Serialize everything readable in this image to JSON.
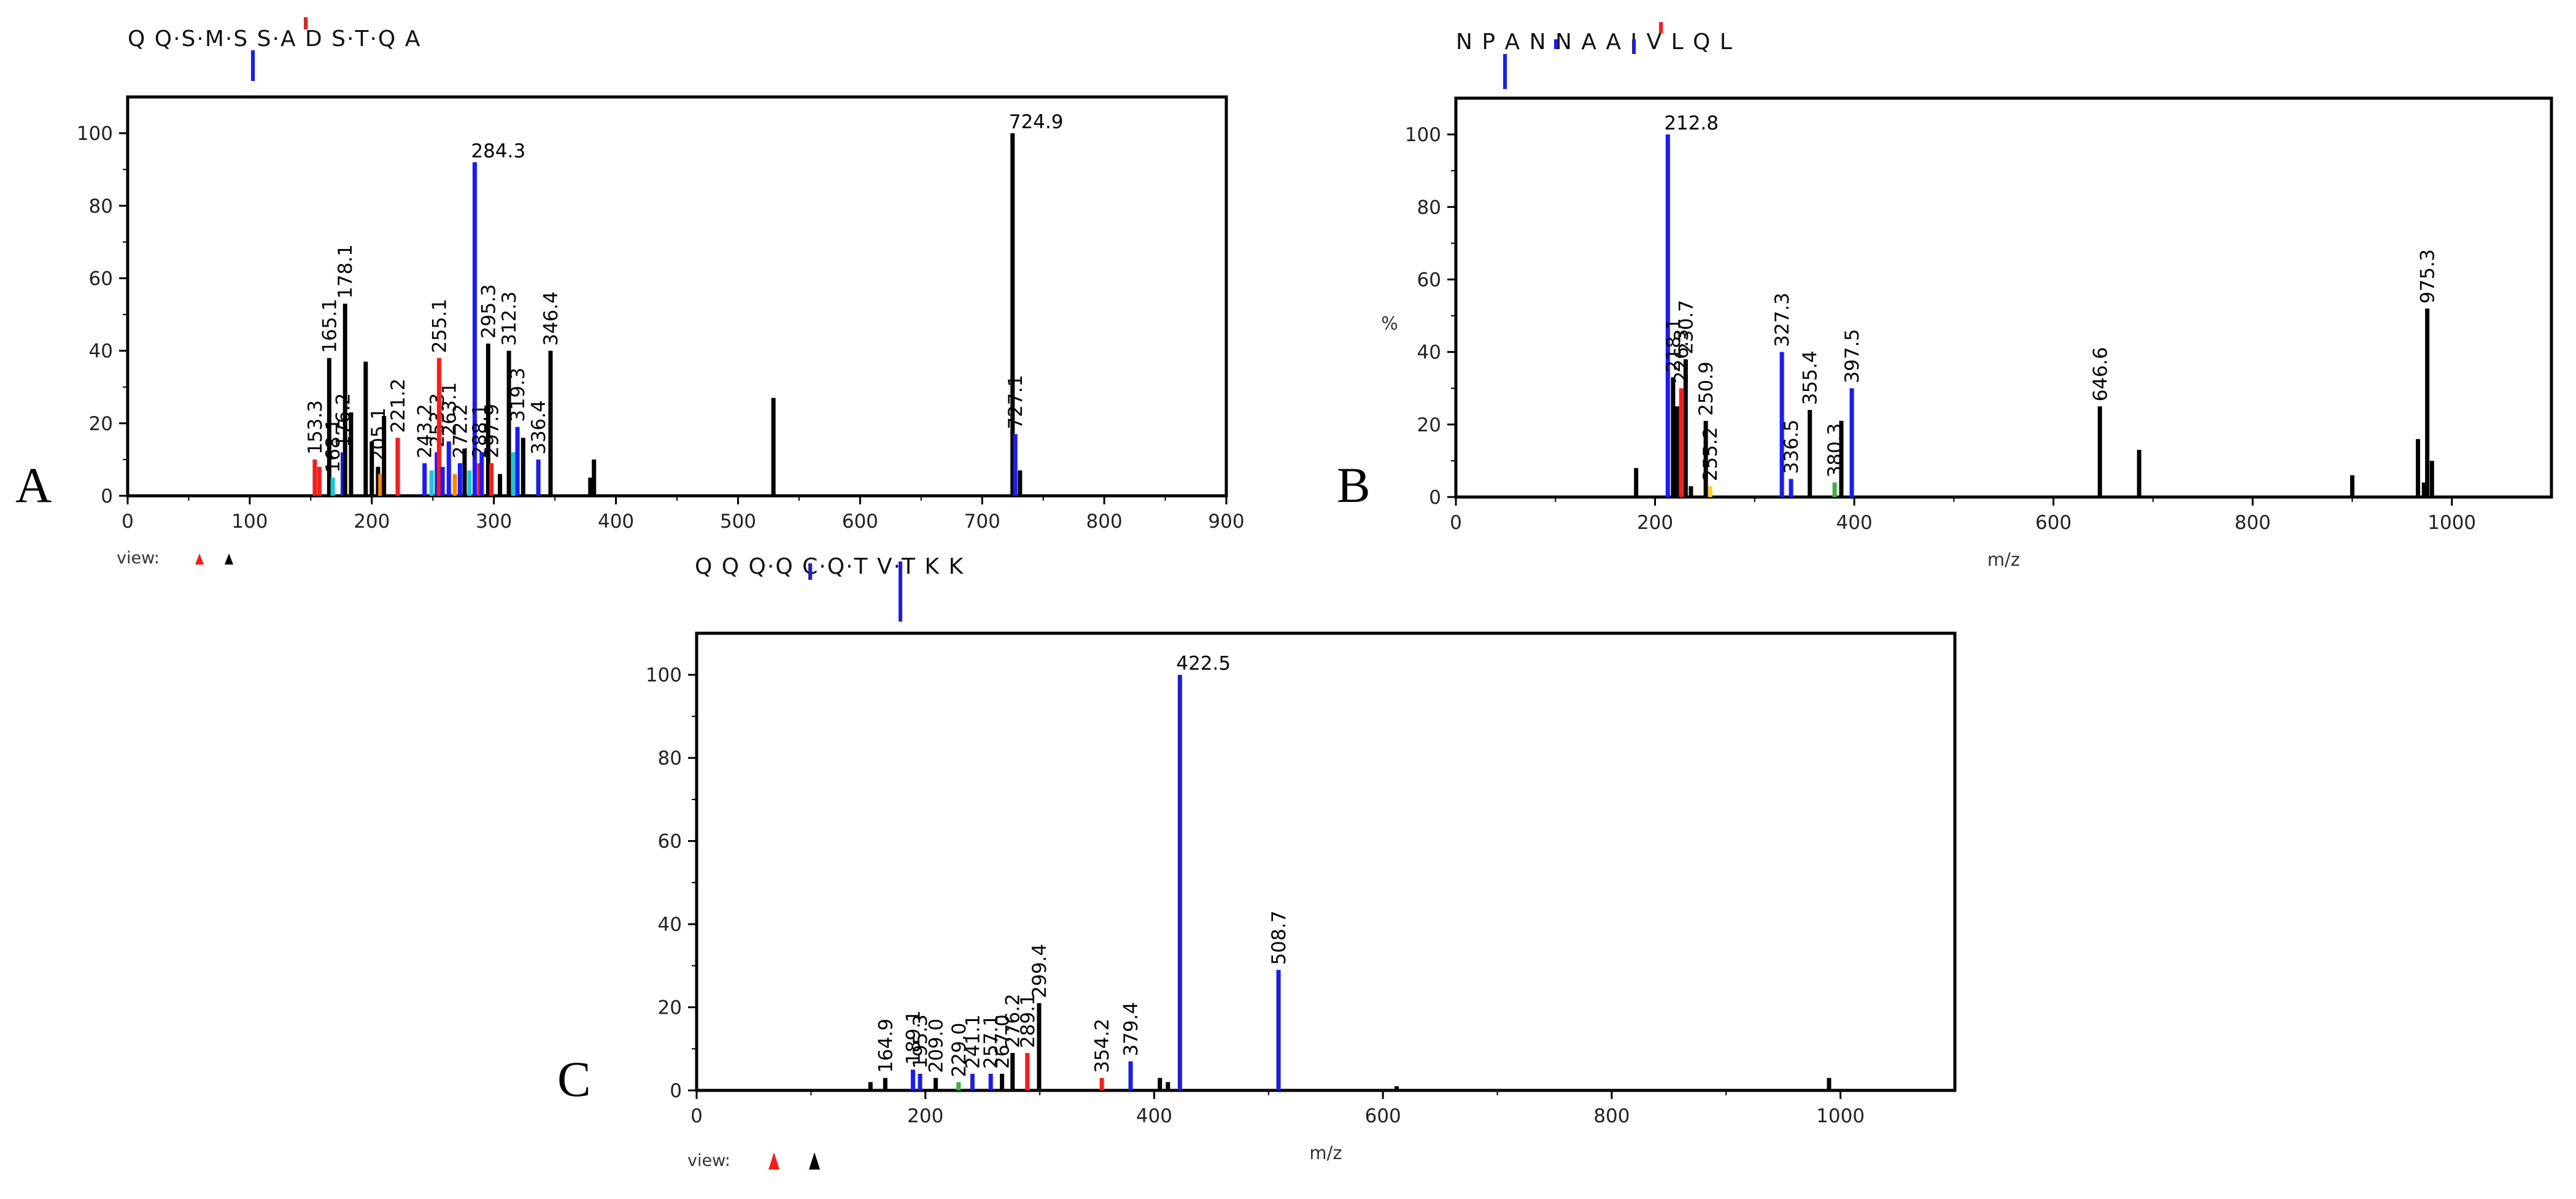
{
  "colors": {
    "b": "#1a1aff",
    "y": "#000000",
    "r": "#ff1a1a",
    "c": "#18c8d6",
    "o": "#ff8800",
    "g": "#3cb043",
    "yl": "#ffd21a"
  },
  "chart_data": [
    {
      "panel": "A",
      "type": "bar",
      "sequence": "Q Q·S·M·S S·A D S·T·Q A",
      "xlim": [
        0,
        900
      ],
      "ylim": [
        0,
        110
      ],
      "xticks": [
        0,
        100,
        200,
        300,
        400,
        500,
        600,
        700,
        800,
        900
      ],
      "yticks": [
        0,
        20,
        40,
        60,
        80,
        100
      ],
      "xlabel": "",
      "ylabel": "",
      "view_label": "view:",
      "peaks": [
        {
          "x": 153.3,
          "y": 10,
          "c": "r",
          "label": "153.3"
        },
        {
          "x": 157,
          "y": 8,
          "c": "r"
        },
        {
          "x": 165.1,
          "y": 38,
          "c": "y",
          "label": "165.1"
        },
        {
          "x": 168,
          "y": 5,
          "c": "c",
          "label": "168.1"
        },
        {
          "x": 176.2,
          "y": 12,
          "c": "b",
          "label": "176.2"
        },
        {
          "x": 178.1,
          "y": 53,
          "c": "y",
          "label": "178.1"
        },
        {
          "x": 183,
          "y": 23,
          "c": "y"
        },
        {
          "x": 195,
          "y": 37,
          "c": "y"
        },
        {
          "x": 200,
          "y": 15,
          "c": "y"
        },
        {
          "x": 205.1,
          "y": 8,
          "c": "y",
          "label": "205.1"
        },
        {
          "x": 207,
          "y": 6,
          "c": "o"
        },
        {
          "x": 210,
          "y": 22,
          "c": "y"
        },
        {
          "x": 221.2,
          "y": 16,
          "c": "r",
          "label": "221.2"
        },
        {
          "x": 243.2,
          "y": 9,
          "c": "b",
          "label": "243.2"
        },
        {
          "x": 249,
          "y": 7,
          "c": "c"
        },
        {
          "x": 253.3,
          "y": 12,
          "c": "b",
          "label": "253.3"
        },
        {
          "x": 255.1,
          "y": 38,
          "c": "r",
          "label": "255.1"
        },
        {
          "x": 258,
          "y": 8,
          "c": "b"
        },
        {
          "x": 263.1,
          "y": 15,
          "c": "b",
          "label": "263.1"
        },
        {
          "x": 268,
          "y": 6,
          "c": "o"
        },
        {
          "x": 272.2,
          "y": 9,
          "c": "b",
          "label": "272.2"
        },
        {
          "x": 276,
          "y": 13,
          "c": "y"
        },
        {
          "x": 280,
          "y": 7,
          "c": "c"
        },
        {
          "x": 284.3,
          "y": 92,
          "c": "b",
          "label": "284.3"
        },
        {
          "x": 288,
          "y": 9,
          "c": "r",
          "label": "288.1"
        },
        {
          "x": 290,
          "y": 12,
          "c": "b"
        },
        {
          "x": 295.3,
          "y": 42,
          "c": "y",
          "label": "295.3"
        },
        {
          "x": 297.9,
          "y": 9,
          "c": "r",
          "label": "297.9"
        },
        {
          "x": 305,
          "y": 6,
          "c": "y"
        },
        {
          "x": 312.3,
          "y": 40,
          "c": "y",
          "label": "312.3"
        },
        {
          "x": 316,
          "y": 12,
          "c": "c"
        },
        {
          "x": 319.3,
          "y": 19,
          "c": "b",
          "label": "319.3"
        },
        {
          "x": 324,
          "y": 16,
          "c": "y"
        },
        {
          "x": 336.4,
          "y": 10,
          "c": "b",
          "label": "336.4"
        },
        {
          "x": 346.4,
          "y": 40,
          "c": "y",
          "label": "346.4"
        },
        {
          "x": 379,
          "y": 5,
          "c": "y"
        },
        {
          "x": 382,
          "y": 10,
          "c": "y"
        },
        {
          "x": 529,
          "y": 27,
          "c": "y"
        },
        {
          "x": 724.9,
          "y": 100,
          "c": "y",
          "label": "724.9"
        },
        {
          "x": 727.1,
          "y": 17,
          "c": "b",
          "label": "727.1"
        },
        {
          "x": 731,
          "y": 7,
          "c": "y"
        }
      ]
    },
    {
      "panel": "B",
      "type": "bar",
      "sequence": "N P A N N A A I V L Q L",
      "xlim": [
        0,
        1100
      ],
      "ylim": [
        0,
        110
      ],
      "xticks": [
        0,
        200,
        400,
        600,
        800,
        1000
      ],
      "yticks": [
        0,
        20,
        40,
        60,
        80,
        100
      ],
      "xlabel": "m/z",
      "ylabel": "%",
      "peaks": [
        {
          "x": 181,
          "y": 8,
          "c": "y"
        },
        {
          "x": 212.8,
          "y": 100,
          "c": "b",
          "label": "212.8"
        },
        {
          "x": 218.1,
          "y": 33,
          "c": "y",
          "label": "218.1"
        },
        {
          "x": 222,
          "y": 25,
          "c": "y"
        },
        {
          "x": 226.3,
          "y": 30,
          "c": "r",
          "label": "226.3"
        },
        {
          "x": 230.7,
          "y": 38,
          "c": "y",
          "label": "230.7"
        },
        {
          "x": 236,
          "y": 3,
          "c": "y"
        },
        {
          "x": 250.9,
          "y": 21,
          "c": "y",
          "label": "250.9"
        },
        {
          "x": 255.2,
          "y": 3,
          "c": "yl",
          "label": "255.2"
        },
        {
          "x": 327.3,
          "y": 40,
          "c": "b",
          "label": "327.3"
        },
        {
          "x": 336.5,
          "y": 5,
          "c": "b",
          "label": "336.5"
        },
        {
          "x": 355.4,
          "y": 24,
          "c": "y",
          "label": "355.4"
        },
        {
          "x": 380.3,
          "y": 4,
          "c": "g",
          "label": "380.3"
        },
        {
          "x": 387,
          "y": 21,
          "c": "y"
        },
        {
          "x": 397.5,
          "y": 30,
          "c": "b",
          "label": "397.5"
        },
        {
          "x": 646.6,
          "y": 25,
          "c": "y",
          "label": "646.6"
        },
        {
          "x": 686,
          "y": 13,
          "c": "y"
        },
        {
          "x": 900,
          "y": 6,
          "c": "y"
        },
        {
          "x": 966,
          "y": 16,
          "c": "y"
        },
        {
          "x": 972,
          "y": 4,
          "c": "y"
        },
        {
          "x": 975.3,
          "y": 52,
          "c": "y",
          "label": "975.3"
        },
        {
          "x": 980,
          "y": 10,
          "c": "y"
        }
      ]
    },
    {
      "panel": "C",
      "type": "bar",
      "sequence": "Q Q Q·Q C·Q·T V·T K K",
      "xlim": [
        0,
        1100
      ],
      "ylim": [
        0,
        110
      ],
      "xticks": [
        0,
        200,
        400,
        600,
        800,
        1000
      ],
      "yticks": [
        0,
        20,
        40,
        60,
        80,
        100
      ],
      "xlabel": "m/z",
      "ylabel": "",
      "view_label": "view:",
      "peaks": [
        {
          "x": 152,
          "y": 2,
          "c": "y"
        },
        {
          "x": 164.9,
          "y": 3,
          "c": "y",
          "label": "164.9"
        },
        {
          "x": 189.1,
          "y": 5,
          "c": "b",
          "label": "189.1"
        },
        {
          "x": 195.3,
          "y": 4,
          "c": "b",
          "label": "195.3"
        },
        {
          "x": 209.0,
          "y": 3,
          "c": "y",
          "label": "209.0"
        },
        {
          "x": 229.0,
          "y": 2,
          "c": "g",
          "label": "229.0"
        },
        {
          "x": 241.1,
          "y": 4,
          "c": "b",
          "label": "241.1"
        },
        {
          "x": 257.1,
          "y": 4,
          "c": "b",
          "label": "257.1"
        },
        {
          "x": 267.0,
          "y": 4,
          "c": "y",
          "label": "267.0"
        },
        {
          "x": 276.2,
          "y": 9,
          "c": "y",
          "label": "276.2"
        },
        {
          "x": 289.1,
          "y": 9,
          "c": "r",
          "label": "289.1"
        },
        {
          "x": 299.4,
          "y": 21,
          "c": "y",
          "label": "299.4"
        },
        {
          "x": 354.2,
          "y": 3,
          "c": "r",
          "label": "354.2"
        },
        {
          "x": 379.4,
          "y": 7,
          "c": "b",
          "label": "379.4"
        },
        {
          "x": 405,
          "y": 3,
          "c": "y"
        },
        {
          "x": 412,
          "y": 2,
          "c": "y"
        },
        {
          "x": 422.5,
          "y": 100,
          "c": "b",
          "label": "422.5"
        },
        {
          "x": 508.7,
          "y": 29,
          "c": "b",
          "label": "508.7"
        },
        {
          "x": 612,
          "y": 1,
          "c": "y"
        },
        {
          "x": 990,
          "y": 3,
          "c": "y"
        }
      ]
    }
  ]
}
